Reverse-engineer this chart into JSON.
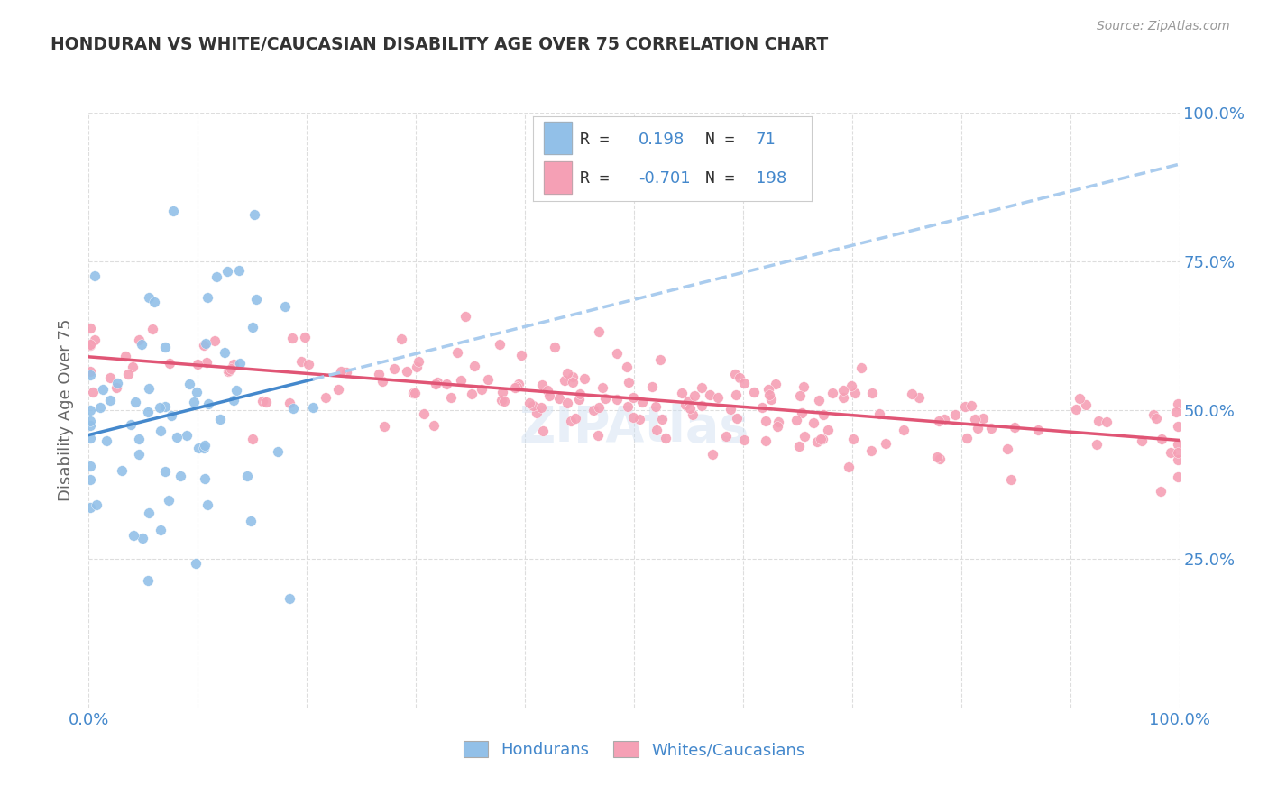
{
  "title": "HONDURAN VS WHITE/CAUCASIAN DISABILITY AGE OVER 75 CORRELATION CHART",
  "source": "Source: ZipAtlas.com",
  "ylabel": "Disability Age Over 75",
  "ylabel_right_ticks": [
    "100.0%",
    "75.0%",
    "50.0%",
    "25.0%"
  ],
  "ylabel_right_values": [
    1.0,
    0.75,
    0.5,
    0.25
  ],
  "legend_blue_R": "0.198",
  "legend_blue_N": "71",
  "legend_pink_R": "-0.701",
  "legend_pink_N": "198",
  "blue_color": "#92C0E8",
  "pink_color": "#F5A0B5",
  "trendline_blue_solid": "#4488CC",
  "trendline_blue_dashed": "#AACCEE",
  "trendline_pink": "#E05575",
  "background_color": "#FFFFFF",
  "grid_color": "#DDDDDD",
  "title_color": "#333333",
  "source_color": "#999999",
  "axis_label_color": "#4488CC",
  "blue_N": 71,
  "pink_N": 198,
  "blue_R": 0.198,
  "pink_R": -0.701,
  "xlim": [
    0.0,
    1.0
  ],
  "ylim": [
    0.0,
    1.0
  ]
}
